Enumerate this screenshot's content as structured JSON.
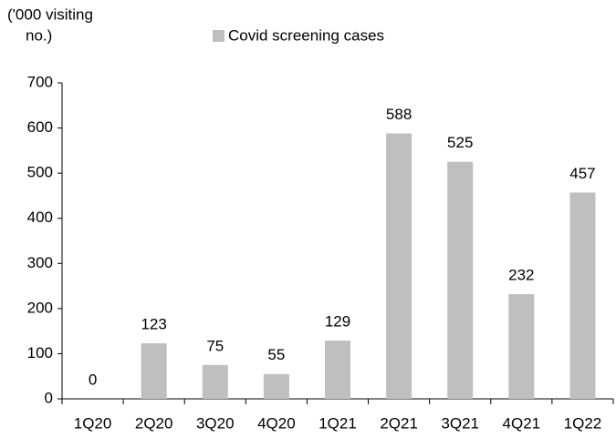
{
  "chart_data": {
    "type": "bar",
    "ylabel_lines": [
      "('000 visiting",
      "no.)"
    ],
    "categories": [
      "1Q20",
      "2Q20",
      "3Q20",
      "4Q20",
      "1Q21",
      "2Q21",
      "3Q21",
      "4Q21",
      "1Q22"
    ],
    "series": [
      {
        "name": "Covid screening cases",
        "color": "#bfbfbf",
        "values": [
          0,
          123,
          75,
          55,
          129,
          588,
          525,
          232,
          457
        ]
      }
    ],
    "ylim": [
      0,
      700
    ],
    "yticks": [
      0,
      100,
      200,
      300,
      400,
      500,
      600,
      700
    ],
    "grid": false
  }
}
